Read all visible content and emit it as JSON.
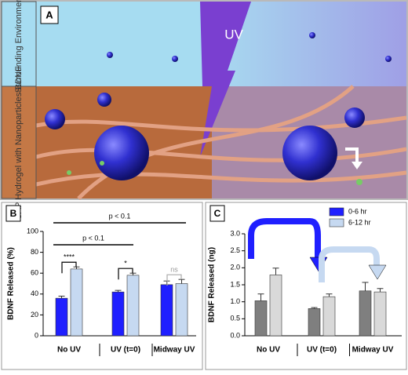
{
  "panel_a": {
    "label": "A",
    "top_region": "Surrounding Environment",
    "bottom_region": "SAP Hydrogel with Nanoparticles-BDNF",
    "uv": "UV"
  },
  "chart_data": [
    {
      "type": "bar",
      "panel_label": "B",
      "y_label": "BDNF Released (%)",
      "categories": [
        "No UV",
        "UV (t=0)",
        "Midway UV"
      ],
      "series": [
        {
          "name": "0-6 hr",
          "color": "#1f1fff",
          "values": [
            36,
            42,
            49
          ],
          "errors": [
            2,
            1.5,
            3.5
          ]
        },
        {
          "name": "6-12 hr",
          "color": "#c6d9f1",
          "values": [
            64,
            58,
            50
          ],
          "errors": [
            2,
            2,
            4
          ]
        }
      ],
      "ylim": [
        0,
        100
      ],
      "yticks": [
        0,
        20,
        40,
        60,
        80,
        100
      ],
      "annotations": [
        "****",
        "*",
        "ns",
        "p < 0.1",
        "p < 0.1"
      ]
    },
    {
      "type": "bar",
      "panel_label": "C",
      "y_label": "BDNF Released (ng)",
      "categories": [
        "No UV",
        "UV (t=0)",
        "Midway UV"
      ],
      "series": [
        {
          "name": "0-6 hr",
          "color": "#1f1fff",
          "bar_color": "#7f7f7f",
          "values": [
            1.03,
            0.8,
            1.32
          ],
          "errors": [
            0.2,
            0.03,
            0.25
          ]
        },
        {
          "name": "6-12 hr",
          "color": "#c6d9f1",
          "bar_color": "#d9d9d9",
          "values": [
            1.79,
            1.15,
            1.29
          ],
          "errors": [
            0.2,
            0.08,
            0.1
          ]
        }
      ],
      "ylim": [
        0,
        3
      ],
      "yticks": [
        {
          "value": 0,
          "label": "0.0"
        },
        0.5,
        {
          "value": 1,
          "label": "1.0"
        },
        1.5,
        {
          "value": 2,
          "label": "2.0"
        },
        2.5,
        {
          "value": 3,
          "label": "3.0"
        }
      ],
      "legend": "top-right"
    }
  ]
}
